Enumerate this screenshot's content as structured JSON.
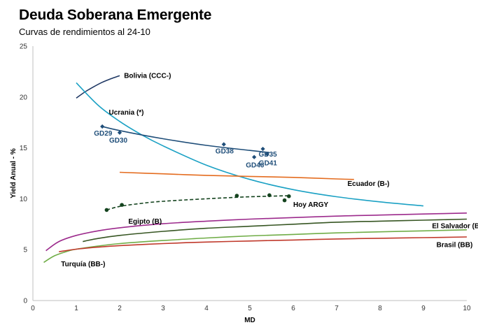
{
  "chart_data": {
    "type": "line",
    "title": "Deuda Soberana Emergente",
    "subtitle": "Curvas de rendimientos al 24-10",
    "xlabel": "MD",
    "ylabel": "Yield Anual - %",
    "xlim": [
      0,
      10
    ],
    "ylim": [
      0,
      25
    ],
    "xticks": [
      0,
      1,
      2,
      3,
      4,
      5,
      6,
      7,
      8,
      9,
      10
    ],
    "yticks": [
      0,
      5,
      10,
      15,
      20,
      25
    ],
    "grid": false,
    "legend": "none",
    "curves": [
      {
        "name": "Bolivia (CCC-)",
        "color": "#1f3864",
        "x": [
          1.0,
          1.2,
          1.4,
          1.6,
          1.8,
          2.0
        ],
        "y": [
          19.9,
          20.5,
          21.0,
          21.45,
          21.8,
          22.1
        ]
      },
      {
        "name": "Ucrania (*)",
        "color": "#1ba1c4",
        "x": [
          1.0,
          1.5,
          2.0,
          2.5,
          3.0,
          4.0,
          5.0,
          6.0,
          7.0,
          8.0,
          9.0
        ],
        "y": [
          21.4,
          19.2,
          17.6,
          16.3,
          15.2,
          13.3,
          11.9,
          10.9,
          10.2,
          9.7,
          9.3
        ]
      },
      {
        "name": "Ecuador (B-)",
        "color": "#e46c1f",
        "x": [
          2.0,
          3.0,
          4.0,
          5.0,
          6.0,
          7.0,
          7.4
        ],
        "y": [
          12.6,
          12.45,
          12.3,
          12.2,
          12.1,
          11.95,
          11.9
        ]
      },
      {
        "name": "Egipto (B)",
        "color": "#9c2a8c",
        "x": [
          0.3,
          0.6,
          1.0,
          1.5,
          2.0,
          3.0,
          4.0,
          5.0,
          6.0,
          7.0,
          8.0,
          9.0,
          10.0
        ],
        "y": [
          4.9,
          5.8,
          6.4,
          6.85,
          7.15,
          7.55,
          7.8,
          8.0,
          8.15,
          8.3,
          8.4,
          8.5,
          8.6
        ]
      },
      {
        "name": "El Salvador (B-)",
        "color": "#375623",
        "x": [
          1.15,
          1.5,
          2.0,
          3.0,
          4.0,
          5.0,
          6.0,
          7.0,
          8.0,
          9.0,
          10.0
        ],
        "y": [
          5.8,
          6.1,
          6.4,
          6.8,
          7.1,
          7.3,
          7.5,
          7.7,
          7.8,
          7.9,
          8.0
        ]
      },
      {
        "name": "Turquía (BB-)",
        "color": "#70ad47",
        "x": [
          0.25,
          0.5,
          0.8,
          1.0,
          1.5,
          2.0,
          3.0,
          4.0,
          5.0,
          6.0,
          7.0,
          8.0,
          9.0,
          10.0
        ],
        "y": [
          3.75,
          4.4,
          4.85,
          5.05,
          5.35,
          5.6,
          5.9,
          6.15,
          6.35,
          6.5,
          6.65,
          6.75,
          6.85,
          6.95
        ]
      },
      {
        "name": "Brasil (BB)",
        "color": "#c0392b",
        "x": [
          0.6,
          1.0,
          1.5,
          2.0,
          3.0,
          4.0,
          5.0,
          6.0,
          7.0,
          8.0,
          9.0,
          10.0
        ],
        "y": [
          4.8,
          5.05,
          5.25,
          5.4,
          5.6,
          5.75,
          5.85,
          5.95,
          6.05,
          6.12,
          6.18,
          6.25
        ]
      }
    ],
    "bond_series": [
      {
        "name": "",
        "color": "#1f4e79",
        "points": [
          {
            "label": "GD29",
            "x": 1.6,
            "y": 17.1
          },
          {
            "label": "GD30",
            "x": 2.0,
            "y": 16.5
          },
          {
            "label": "GD38",
            "x": 4.4,
            "y": 15.35
          },
          {
            "label": "GD46",
            "x": 5.1,
            "y": 14.1
          },
          {
            "label": "GD35",
            "x": 5.3,
            "y": 14.9
          },
          {
            "label": "GD41",
            "x": 5.4,
            "y": 14.4
          }
        ],
        "fit": {
          "x": [
            1.6,
            2.0,
            3.0,
            4.0,
            5.0,
            5.45
          ],
          "y": [
            17.1,
            16.7,
            15.9,
            15.25,
            14.75,
            14.55
          ]
        }
      },
      {
        "name": "Hoy ARGY",
        "color": "#14431e",
        "points": [
          {
            "x": 1.7,
            "y": 8.9
          },
          {
            "x": 2.05,
            "y": 9.4
          },
          {
            "x": 4.7,
            "y": 10.3
          },
          {
            "x": 5.45,
            "y": 10.35
          },
          {
            "x": 5.8,
            "y": 9.85
          },
          {
            "x": 5.9,
            "y": 10.25
          }
        ],
        "fit": {
          "x": [
            1.7,
            2.0,
            2.5,
            3.0,
            4.0,
            5.0,
            5.9
          ],
          "y": [
            8.9,
            9.25,
            9.55,
            9.75,
            10.0,
            10.2,
            10.3
          ]
        }
      }
    ],
    "annotations": [
      {
        "text": "Bolivia (CCC-)",
        "x": 2.1,
        "y": 22.1,
        "color": "#000000"
      },
      {
        "text": "Ucrania (*)",
        "x": 1.75,
        "y": 18.5,
        "color": "#000000"
      },
      {
        "text": "Ecuador (B-)",
        "x": 7.25,
        "y": 11.5,
        "color": "#000000"
      },
      {
        "text": "Egipto (B)",
        "x": 2.2,
        "y": 7.8,
        "color": "#000000"
      },
      {
        "text": "El Salvador (B-)",
        "x": 9.2,
        "y": 7.35,
        "color": "#000000"
      },
      {
        "text": "Turquía (BB-)",
        "x": 0.65,
        "y": 3.6,
        "color": "#000000"
      },
      {
        "text": "Brasil (BB)",
        "x": 9.3,
        "y": 5.5,
        "color": "#000000"
      },
      {
        "text": "Hoy ARGY",
        "x": 6.0,
        "y": 9.45,
        "color": "#000000"
      }
    ]
  }
}
